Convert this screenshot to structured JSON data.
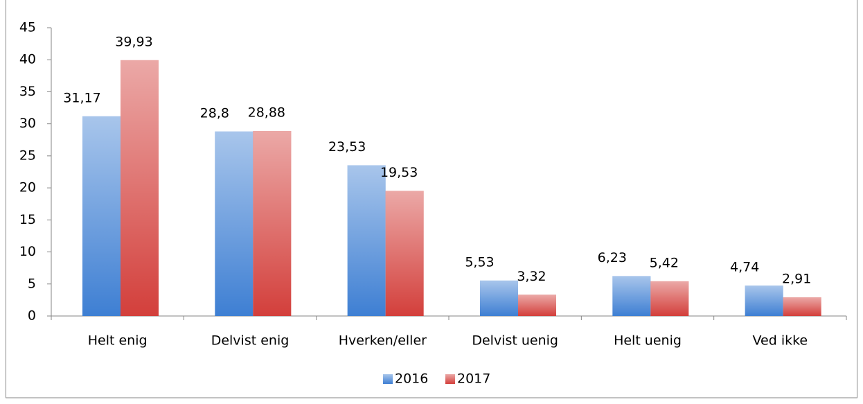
{
  "chart_data": {
    "type": "bar",
    "categories": [
      "Helt enig",
      "Delvist enig",
      "Hverken/eller",
      "Delvist uenig",
      "Helt uenig",
      "Ved ikke"
    ],
    "series": [
      {
        "name": "2016",
        "color": "#3e7fd3",
        "values": [
          31.17,
          28.8,
          23.53,
          5.53,
          6.23,
          4.74
        ],
        "value_labels": [
          "31,17",
          "28,8",
          "23,53",
          "5,53",
          "6,23",
          "4,74"
        ]
      },
      {
        "name": "2017",
        "color": "#d33f3b",
        "values": [
          39.93,
          28.88,
          19.53,
          3.32,
          5.42,
          2.91
        ],
        "value_labels": [
          "39,93",
          "28,88",
          "19,53",
          "3,32",
          "5,42",
          "2,91"
        ]
      }
    ],
    "ylim": [
      0,
      45
    ],
    "yticks": [
      0,
      5,
      10,
      15,
      20,
      25,
      30,
      35,
      40,
      45
    ],
    "legend": "bottom"
  }
}
